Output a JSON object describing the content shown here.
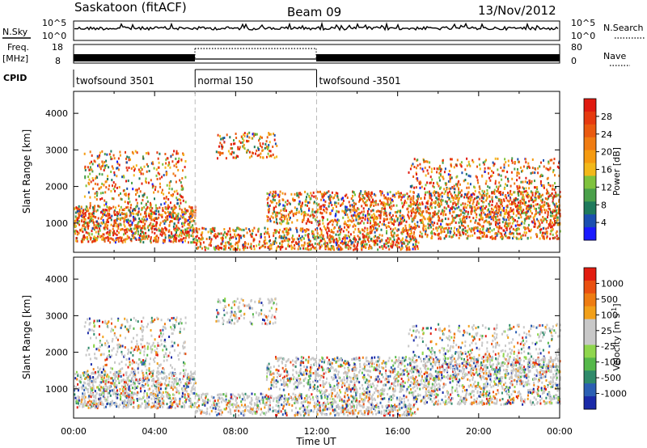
{
  "header": {
    "station": "Saskatoon (fitACF)",
    "beam": "Beam 09",
    "date": "13/Nov/2012"
  },
  "chart_data": [
    {
      "type": "line",
      "name": "noise-panel",
      "left_label": "N.Sky",
      "right_label": "N.Search",
      "left_ticks": [
        "10^5",
        "10^0"
      ],
      "right_ticks": [
        "10^5",
        "10^0"
      ],
      "xlim": [
        0,
        24
      ]
    },
    {
      "type": "line",
      "name": "frequency-panel",
      "left_label_1": "Freq.",
      "left_label_2": "[MHz]",
      "right_label": "Nave",
      "left_ticks": [
        "18",
        "8"
      ],
      "right_ticks": [
        "80",
        "0"
      ],
      "xlim": [
        0,
        24
      ]
    },
    {
      "type": "table",
      "name": "cpid-panel",
      "label": "CPID",
      "segments": [
        {
          "start": 0,
          "end": 6,
          "label": "twofsound 3501"
        },
        {
          "start": 6,
          "end": 12,
          "label": "normal 150"
        },
        {
          "start": 12,
          "end": 24,
          "label": "twofsound -3501"
        }
      ]
    },
    {
      "type": "heatmap",
      "name": "power-panel",
      "ylabel": "Slant Range [km]",
      "ylim": [
        200,
        4600
      ],
      "yticks": [
        "1000",
        "2000",
        "3000",
        "4000"
      ],
      "xlim": [
        0,
        24
      ],
      "colorbar": {
        "label": "Power [dB]",
        "ticks": [
          "4",
          "8",
          "12",
          "16",
          "20",
          "24",
          "28"
        ],
        "colors": [
          "#1a1aff",
          "#1b4fb0",
          "#1f7a5c",
          "#4aa04a",
          "#7fc23d",
          "#f2b81a",
          "#f59a10",
          "#f07c12",
          "#ea5a10",
          "#e63a10",
          "#e01a10"
        ]
      }
    },
    {
      "type": "heatmap",
      "name": "velocity-panel",
      "ylabel": "Slant Range [km]",
      "ylim": [
        200,
        4600
      ],
      "yticks": [
        "1000",
        "2000",
        "3000",
        "4000"
      ],
      "xlim": [
        0,
        24
      ],
      "xlabel": "Time UT",
      "xticks": [
        "00:00",
        "04:00",
        "08:00",
        "12:00",
        "16:00",
        "20:00",
        "00:00"
      ],
      "colorbar": {
        "label": "Velocity [m s^-1]",
        "ticks": [
          "1000",
          "500",
          "100",
          "25",
          "-25",
          "-100",
          "-500",
          "-1000"
        ],
        "colors": [
          "#1a2aa8",
          "#2b5fb3",
          "#2f8a6a",
          "#55b84a",
          "#8fd64d",
          "#c8c8c8",
          "#c8c8c8",
          "#f2a01a",
          "#ee7c12",
          "#ea5010",
          "#e21c10"
        ]
      }
    }
  ]
}
